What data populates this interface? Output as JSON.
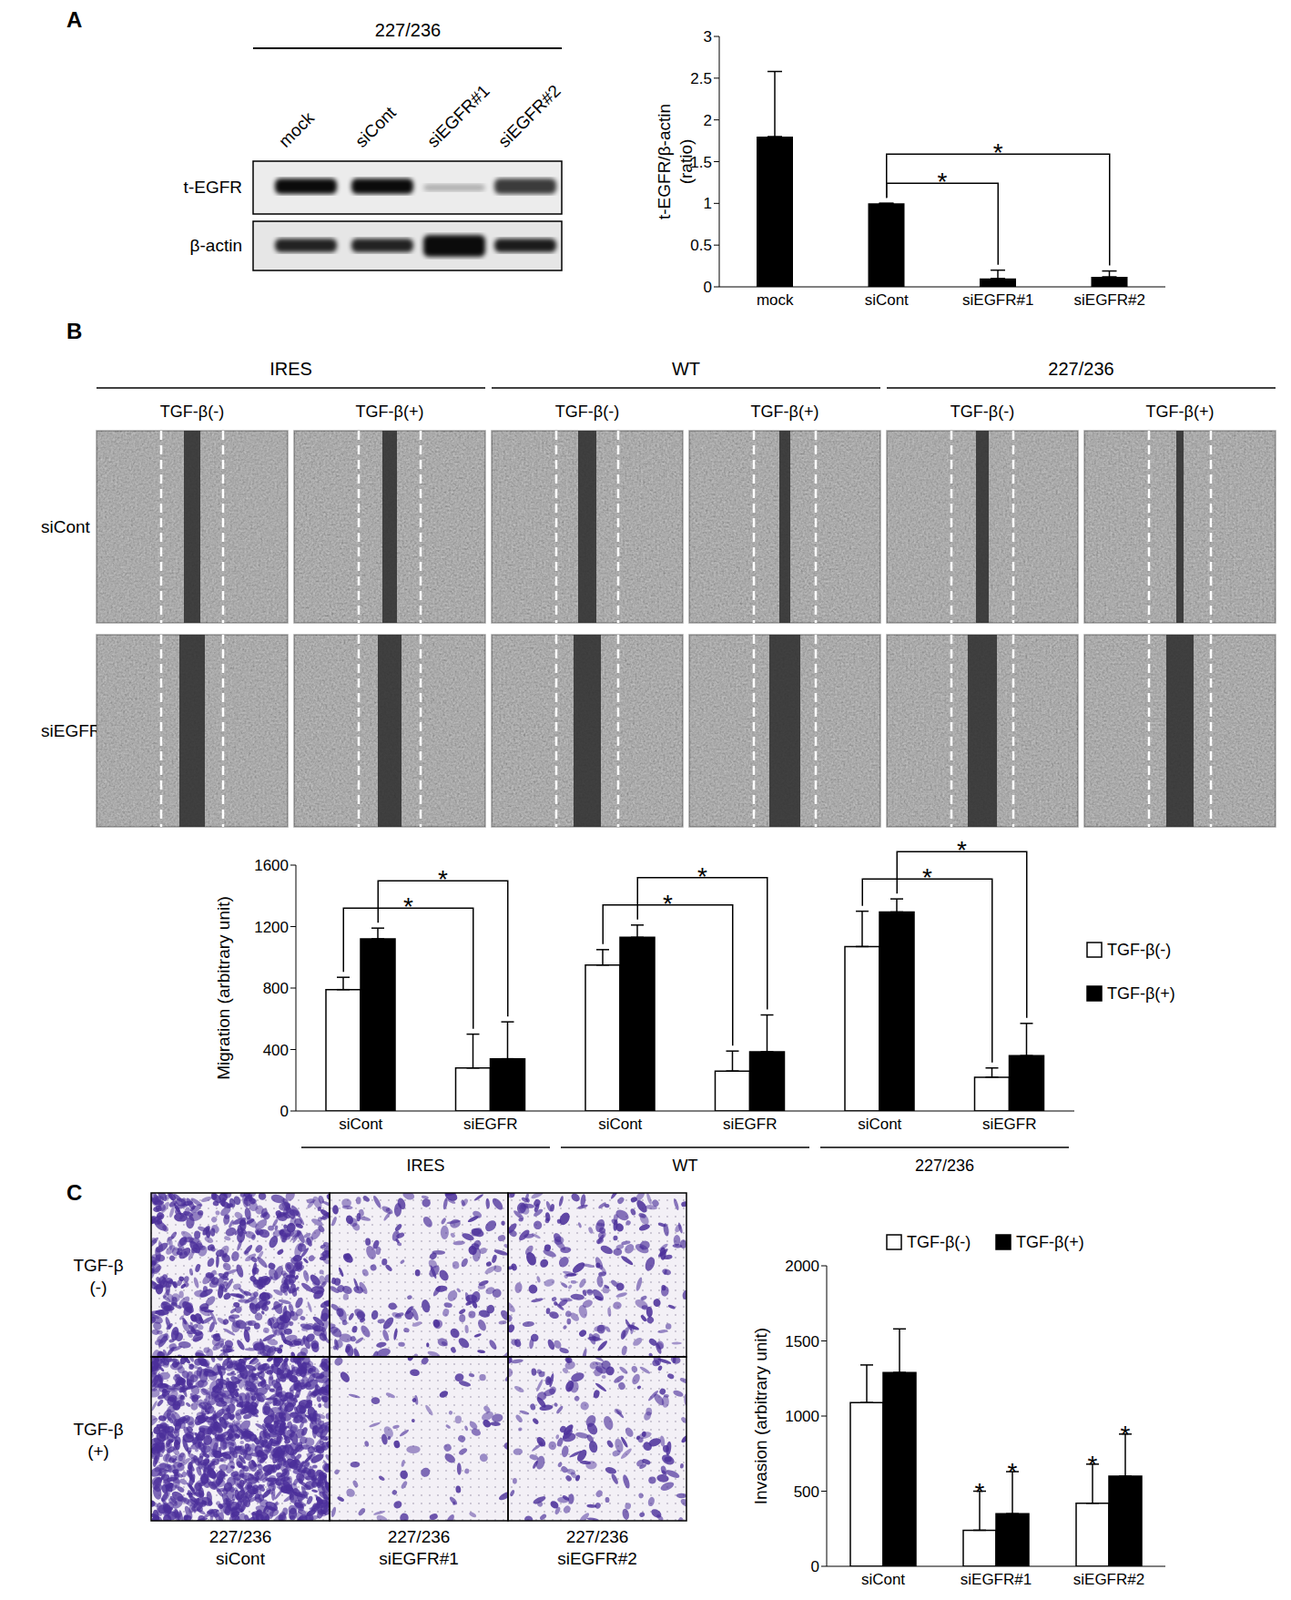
{
  "panels": {
    "A": {
      "letter": "A",
      "blot": {
        "header": "227/236",
        "lanes": [
          "mock",
          "siCont",
          "siEGFR#1",
          "siEGFR#2"
        ],
        "rows": [
          "t-EGFR",
          "β-actin"
        ]
      }
    },
    "B": {
      "letter": "B",
      "micrographs": {
        "groups": [
          "IRES",
          "WT",
          "227/236"
        ],
        "conditions": [
          "TGF-β(-)",
          "TGF-β(+)"
        ],
        "rows": [
          "siCont",
          "siEGFR"
        ]
      }
    },
    "C": {
      "letter": "C",
      "micrographs": {
        "rows": [
          [
            "TGF-β",
            "(-)"
          ],
          [
            "TGF-β",
            "(+)"
          ]
        ],
        "captions": [
          [
            "227/236",
            "siCont"
          ],
          [
            "227/236",
            "siEGFR#1"
          ],
          [
            "227/236",
            "siEGFR#2"
          ]
        ]
      }
    }
  },
  "chart_data": [
    {
      "type": "bar",
      "categories": [
        "mock",
        "siCont",
        "siEGFR#1",
        "siEGFR#2"
      ],
      "values": [
        1.8,
        1,
        0.1,
        0.12
      ],
      "errors": [
        0.78,
        0,
        0.1,
        0.07
      ],
      "color": "#000000",
      "y_label": [
        "t-EGFR/β-actin",
        "(ratio)"
      ],
      "ylim": [
        0,
        3
      ],
      "yticks": [
        0,
        0.5,
        1,
        1.5,
        2,
        2.5,
        3
      ],
      "significance": [
        {
          "from": 1,
          "to": 2,
          "label": "*"
        },
        {
          "from": 1,
          "to": 3,
          "label": "*"
        }
      ]
    },
    {
      "type": "bar",
      "categories": [
        "siCont",
        "siEGFR",
        "siCont",
        "siEGFR",
        "siCont",
        "siEGFR"
      ],
      "groups": [
        "IRES",
        "WT",
        "227/236"
      ],
      "series": [
        {
          "name": "TGF-β(-)",
          "color": "#ffffff",
          "values": [
            790,
            280,
            950,
            260,
            1070,
            220
          ],
          "errors": [
            80,
            220,
            100,
            130,
            230,
            60
          ]
        },
        {
          "name": "TGF-β(+)",
          "color": "#000000",
          "values": [
            1120,
            340,
            1130,
            385,
            1295,
            360
          ],
          "errors": [
            70,
            240,
            80,
            240,
            85,
            210
          ]
        }
      ],
      "y_label": "Migration (arbitrary unit)",
      "ylim": [
        0,
        1600
      ],
      "yticks": [
        0,
        400,
        800,
        1200,
        1600
      ],
      "legend": "right",
      "significance": [
        {
          "from": 0,
          "to": 1,
          "series": "TGF-β(-)",
          "label": "*"
        },
        {
          "from": 0,
          "to": 1,
          "series": "TGF-β(+)",
          "label": "*"
        },
        {
          "from": 2,
          "to": 3,
          "series": "TGF-β(-)",
          "label": "*"
        },
        {
          "from": 2,
          "to": 3,
          "series": "TGF-β(+)",
          "label": "*"
        },
        {
          "from": 4,
          "to": 5,
          "series": "TGF-β(-)",
          "label": "*"
        },
        {
          "from": 4,
          "to": 5,
          "series": "TGF-β(+)",
          "label": "*"
        }
      ]
    },
    {
      "type": "bar",
      "categories": [
        "siCont",
        "siEGFR#1",
        "siEGFR#2"
      ],
      "series": [
        {
          "name": "TGF-β(-)",
          "color": "#ffffff",
          "values": [
            1090,
            240,
            420
          ],
          "errors": [
            250,
            260,
            260
          ]
        },
        {
          "name": "TGF-β(+)",
          "color": "#000000",
          "values": [
            1290,
            350,
            600
          ],
          "errors": [
            290,
            280,
            280
          ]
        }
      ],
      "y_label": "Invasion (arbitrary unit)",
      "ylim": [
        0,
        2000
      ],
      "yticks": [
        0,
        500,
        1000,
        1500,
        2000
      ],
      "legend": "top",
      "significance": [
        {
          "category": 1,
          "series": "TGF-β(-)",
          "label": "*"
        },
        {
          "category": 1,
          "series": "TGF-β(+)",
          "label": "*"
        },
        {
          "category": 2,
          "series": "TGF-β(-)",
          "label": "*"
        },
        {
          "category": 2,
          "series": "TGF-β(+)",
          "label": "*"
        }
      ]
    }
  ]
}
